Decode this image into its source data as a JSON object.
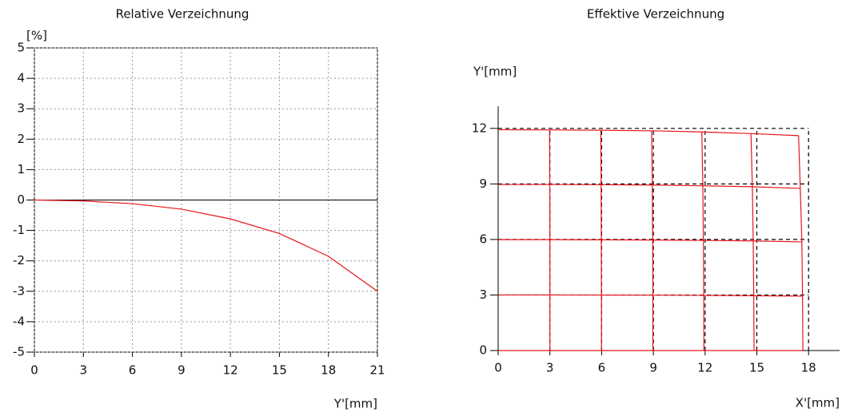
{
  "chart_data": [
    {
      "type": "line",
      "title": "Relative Verzeichnung",
      "ylabel": "[%]",
      "xlabel": "Y'[mm]",
      "x": [
        0,
        3,
        6,
        9,
        12,
        15,
        18,
        21
      ],
      "series": [
        {
          "color": "#e8141a",
          "values": [
            0,
            -0.03,
            -0.12,
            -0.3,
            -0.62,
            -1.1,
            -1.85,
            -3.0
          ]
        }
      ],
      "xlim": [
        0,
        21
      ],
      "xticks": [
        0,
        3,
        6,
        9,
        12,
        15,
        18,
        21
      ],
      "ylim": [
        -5,
        5
      ],
      "yticks": [
        -5,
        -4,
        -3,
        -2,
        -1,
        0,
        1,
        2,
        3,
        4,
        5
      ],
      "grid": true
    },
    {
      "type": "grid",
      "title": "Effektive Verzeichnung",
      "ylabel": "Y'[mm]",
      "xlabel": "X'[mm]",
      "xlim": [
        0,
        19.8
      ],
      "xticks": [
        0,
        3,
        6,
        9,
        12,
        15,
        18
      ],
      "ylim": [
        0,
        13.2
      ],
      "yticks": [
        0,
        3,
        6,
        9,
        12
      ],
      "series": [
        {
          "color": "#000000",
          "dashed": true,
          "x": [
            0,
            18
          ],
          "values": [
            3,
            3
          ]
        },
        {
          "color": "#000000",
          "dashed": true,
          "x": [
            0,
            18
          ],
          "values": [
            6,
            6
          ]
        },
        {
          "color": "#000000",
          "dashed": true,
          "x": [
            0,
            18
          ],
          "values": [
            9,
            9
          ]
        },
        {
          "color": "#000000",
          "dashed": true,
          "x": [
            0,
            18
          ],
          "values": [
            12,
            12
          ]
        },
        {
          "color": "#000000",
          "dashed": true,
          "x": [
            3,
            3
          ],
          "values": [
            0,
            12
          ]
        },
        {
          "color": "#000000",
          "dashed": true,
          "x": [
            6,
            6
          ],
          "values": [
            0,
            12
          ]
        },
        {
          "color": "#000000",
          "dashed": true,
          "x": [
            9,
            9
          ],
          "values": [
            0,
            12
          ]
        },
        {
          "color": "#000000",
          "dashed": true,
          "x": [
            12,
            12
          ],
          "values": [
            0,
            12
          ]
        },
        {
          "color": "#000000",
          "dashed": true,
          "x": [
            15,
            15
          ],
          "values": [
            0,
            12
          ]
        },
        {
          "color": "#000000",
          "dashed": true,
          "x": [
            18,
            18
          ],
          "values": [
            0,
            12
          ]
        },
        {
          "color": "#e8141a",
          "x": [
            0,
            3,
            5.99,
            8.97,
            11.93,
            14.84,
            17.67
          ],
          "values": [
            0,
            0,
            0,
            0,
            0,
            0,
            0
          ]
        },
        {
          "color": "#e8141a",
          "x": [
            0,
            3,
            5.99,
            8.97,
            11.92,
            14.82,
            17.65
          ],
          "values": [
            3,
            3,
            2.995,
            2.99,
            2.98,
            2.96,
            2.94
          ]
        },
        {
          "color": "#e8141a",
          "x": [
            0,
            3,
            5.98,
            8.96,
            11.9,
            14.79,
            17.61
          ],
          "values": [
            5.99,
            5.99,
            5.98,
            5.97,
            5.95,
            5.92,
            5.87
          ]
        },
        {
          "color": "#e8141a",
          "x": [
            0,
            2.99,
            5.97,
            8.94,
            11.87,
            14.74,
            17.52
          ],
          "values": [
            8.97,
            8.97,
            8.96,
            8.94,
            8.9,
            8.85,
            8.76
          ]
        },
        {
          "color": "#e8141a",
          "x": [
            0,
            2.98,
            5.95,
            8.9,
            11.81,
            14.66,
            17.42
          ],
          "values": [
            11.93,
            11.92,
            11.9,
            11.87,
            11.81,
            11.72,
            11.61
          ]
        },
        {
          "color": "#e8141a",
          "x": [
            3,
            3,
            3,
            2.99,
            2.98
          ],
          "values": [
            0,
            3,
            5.99,
            8.97,
            11.92
          ]
        },
        {
          "color": "#e8141a",
          "x": [
            5.99,
            5.99,
            5.98,
            5.97,
            5.95
          ],
          "values": [
            0,
            2.995,
            5.98,
            8.96,
            11.9
          ]
        },
        {
          "color": "#e8141a",
          "x": [
            8.97,
            8.97,
            8.96,
            8.94,
            8.9
          ],
          "values": [
            0,
            2.99,
            5.97,
            8.94,
            11.87
          ]
        },
        {
          "color": "#e8141a",
          "x": [
            11.93,
            11.92,
            11.9,
            11.87,
            11.81
          ],
          "values": [
            0,
            2.98,
            5.95,
            8.9,
            11.81
          ]
        },
        {
          "color": "#e8141a",
          "x": [
            14.84,
            14.82,
            14.79,
            14.74,
            14.66
          ],
          "values": [
            0,
            2.96,
            5.92,
            8.85,
            11.72
          ]
        },
        {
          "color": "#e8141a",
          "x": [
            17.67,
            17.65,
            17.61,
            17.52,
            17.42
          ],
          "values": [
            0,
            2.94,
            5.87,
            8.76,
            11.61
          ]
        }
      ]
    }
  ]
}
